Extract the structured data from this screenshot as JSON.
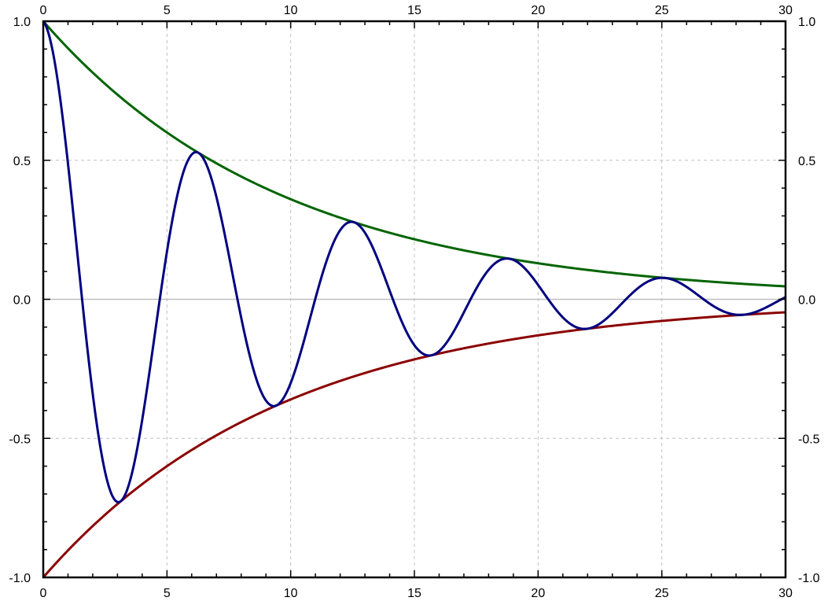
{
  "chart_data": {
    "type": "line",
    "title": "",
    "xlabel": "",
    "ylabel": "",
    "xlim": [
      0,
      30
    ],
    "ylim": [
      -1.0,
      1.0
    ],
    "x_ticks": [
      0,
      5,
      10,
      15,
      20,
      25,
      30
    ],
    "x_tick_labels": [
      "0",
      "5",
      "10",
      "15",
      "20",
      "25",
      "30"
    ],
    "y_ticks": [
      -1.0,
      -0.5,
      0.0,
      0.5,
      1.0
    ],
    "y_tick_labels": [
      "-1.0",
      "-0.5",
      "0.0",
      "0.5",
      "1.0"
    ],
    "x_minor_step": 1,
    "y_minor_step": 0.1,
    "grid": true,
    "zero_line": true,
    "mirrored_axes": true,
    "legend": "none",
    "series": [
      {
        "color": "#000080",
        "x": [
          0,
          3.14,
          6.28,
          9.42,
          12.57,
          15.71,
          18.85,
          21.99,
          25.13,
          28.27,
          30
        ],
        "values": [
          1.0,
          -0.73,
          0.53,
          -0.39,
          0.28,
          -0.21,
          0.15,
          -0.11,
          0.08,
          -0.06,
          0.01
        ]
      },
      {
        "color": "#006400",
        "x": [
          0,
          5,
          10,
          15,
          20,
          25,
          30
        ],
        "values": [
          1.0,
          0.6,
          0.37,
          0.22,
          0.14,
          0.08,
          0.05
        ]
      },
      {
        "color": "#8b0000",
        "x": [
          0,
          5,
          10,
          15,
          20,
          25,
          30
        ],
        "values": [
          -1.0,
          -0.6,
          -0.37,
          -0.22,
          -0.14,
          -0.08,
          -0.05
        ]
      }
    ]
  }
}
